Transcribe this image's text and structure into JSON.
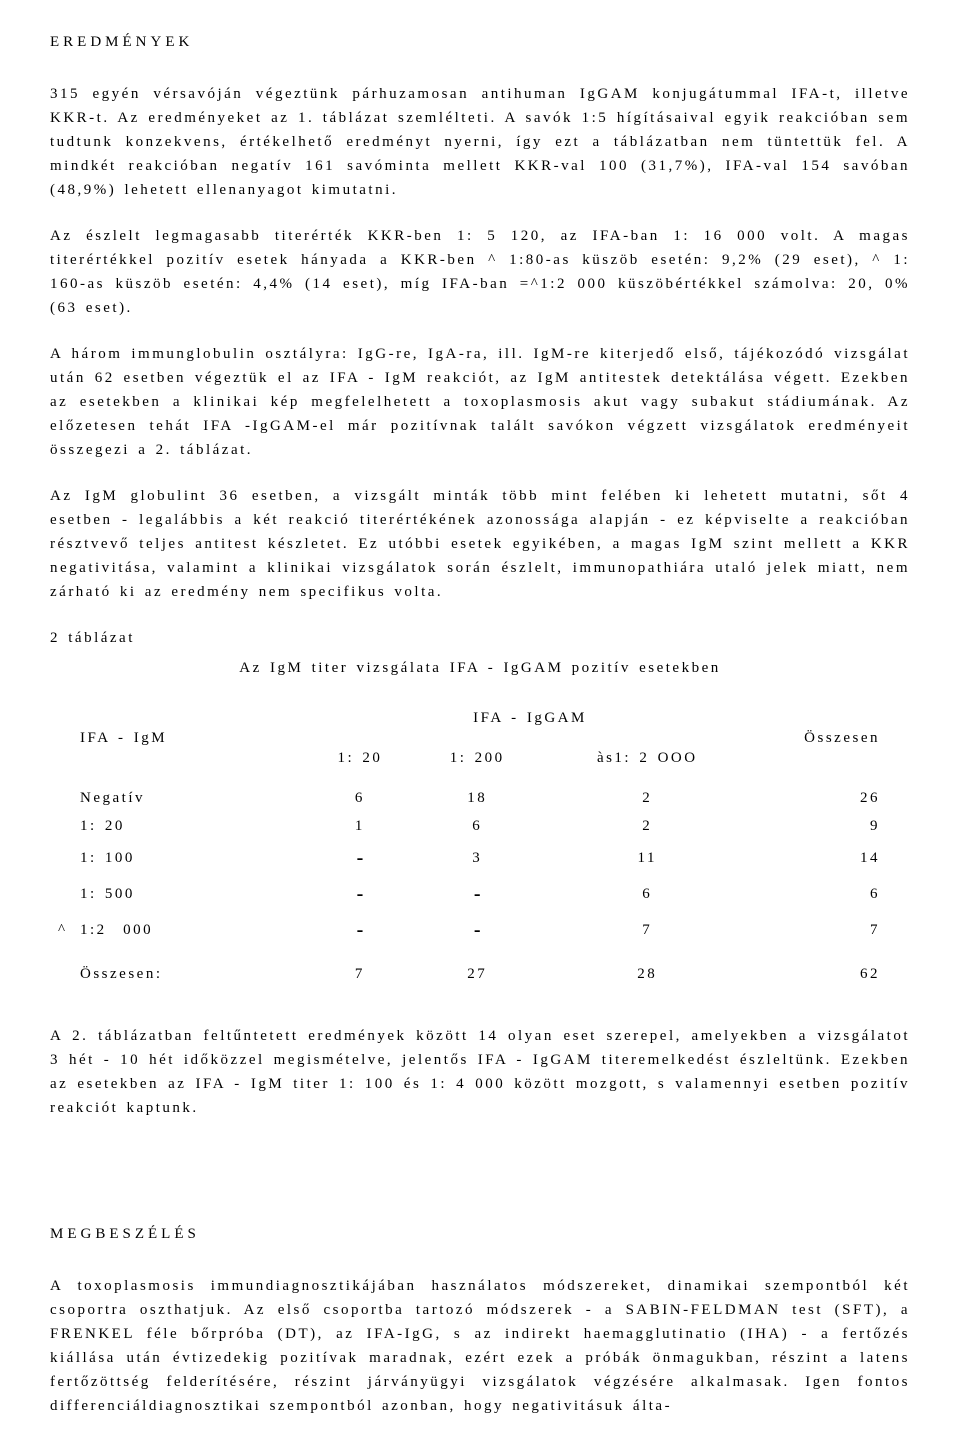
{
  "heading1": "EREDMÉNYEK",
  "p1": "315 egyén vérsavóján végeztünk párhuzamosan antihuman IgGAM konjugátummal IFA-t, illetve KKR-t. Az eredményeket az 1. táblázat szemlélteti. A savók 1:5 hígításaival egyik reakcióban sem tudtunk konzekvens, értékelhető eredményt nyerni, így ezt a táblázatban nem tüntettük fel. A mindkét reakcióban negatív 161 savóminta mellett KKR-val 100 (31,7%), IFA-val 154 savóban (48,9%) lehetett ellenanyagot kimutatni.",
  "p2": "Az észlelt legmagasabb titerérték KKR-ben 1: 5 120, az IFA-ban 1: 16 000 volt. A magas titerértékkel pozitív esetek hányada a KKR-ben ^ 1:80-as küszöb esetén: 9,2% (29 eset), ^ 1: 160-as küszöb esetén: 4,4% (14 eset), míg IFA-ban =^1:2 000 küszöbértékkel számolva: 20, 0% (63 eset).",
  "p3": "A három immunglobulin osztályra: IgG-re, IgA-ra, ill. IgM-re kiterjedő első, tájékozódó vizsgálat után 62 esetben végeztük el az IFA - IgM reakciót, az IgM antitestek detektálása végett. Ezekben az esetekben a klinikai kép megfelelhetett a toxoplasmosis akut vagy subakut stádiumának. Az előzetesen tehát IFA -IgGAM-el már pozitívnak talált savókon végzett vizsgálatok eredményeit összegezi a 2. táblázat.",
  "p4": "Az IgM globulint 36 esetben, a vizsgált minták több mint felében ki lehetett mutatni, sőt 4 esetben - legalábbis a két reakció titerértékének azonossága alapján - ez képviselte a reakcióban résztvevő teljes antitest készletet. Ez utóbbi esetek egyikében, a magas IgM szint mellett a KKR negativitása, valamint a klinikai vizsgálatok során észlelt, immunopathiára utaló jelek miatt, nem zárható ki az eredmény nem specifikus volta.",
  "tableLabel": "2 táblázat",
  "tableCaption": "Az IgM titer vizsgálata IFA - IgGAM pozitív esetekben",
  "table": {
    "leftHeader": "IFA - IgM",
    "superHeader": "IFA - IgGAM",
    "colHeaders": [
      "1: 20",
      "1: 200",
      "às1: 2 OOO"
    ],
    "rightHeader": "Összesen",
    "rows": [
      {
        "label": "Negatív",
        "c1": "6",
        "c2": "18",
        "c3": "2",
        "total": "26"
      },
      {
        "label": "1: 20",
        "c1": "1",
        "c2": "6",
        "c3": "2",
        "total": "9"
      },
      {
        "label": "1: 100",
        "c1": "-",
        "c2": "3",
        "c3": "11",
        "total": "14"
      },
      {
        "label": "1: 500",
        "c1": "-",
        "c2": "-",
        "c3": "6",
        "total": "6"
      },
      {
        "label": "^ 1:2 000",
        "c1": "-",
        "c2": "-",
        "c3": "7",
        "total": "7",
        "caret": true
      }
    ],
    "totalRow": {
      "label": "Összesen:",
      "c1": "7",
      "c2": "27",
      "c3": "28",
      "total": "62"
    }
  },
  "p5": "A 2. táblázatban feltűntetett eredmények között 14 olyan eset szerepel, amelyekben a vizsgálatot 3 hét - 10 hét időközzel megismételve, jelentős IFA - IgGAM titeremelkedést észleltünk. Ezekben az esetekben az IFA - IgM titer 1: 100 és 1: 4 000 között mozgott, s valamennyi esetben pozitív reakciót kaptunk.",
  "heading2": "MEGBESZÉLÉS",
  "p6": "A toxoplasmosis immundiagnosztikájában használatos módszereket, dinamikai szempontból két csoportra oszthatjuk. Az első csoportba tartozó módszerek - a SABIN-FELDMAN test (SFT), a FRENKEL féle bőrpróba (DT), az IFA-IgG, s az indirekt haemagglutinatio (IHA) - a fertőzés kiállása után évtizedekig pozitívak maradnak, ezért ezek a próbák önmagukban, részint a latens fertőzöttség felderítésére, részint járványügyi vizsgálatok végzésére alkalmasak. Igen fontos differenciáldiagnosztikai szempontból azonban, hogy negativitásuk álta-"
}
